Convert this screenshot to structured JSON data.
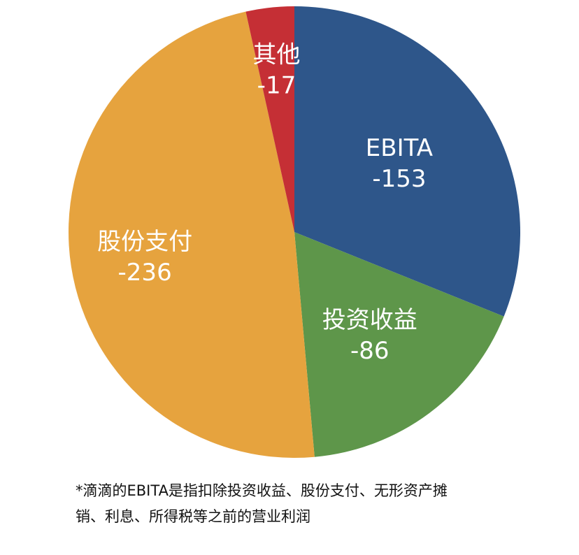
{
  "chart_data": {
    "type": "pie",
    "unit": "",
    "slices": [
      {
        "label": "EBITA",
        "value": -153,
        "value_label": "-153",
        "color": "#2e568a"
      },
      {
        "label": "投资收益",
        "value": -86,
        "value_label": "-86",
        "color": "#5e964a"
      },
      {
        "label": "股份支付",
        "value": -236,
        "value_label": "-236",
        "color": "#e6a33e"
      },
      {
        "label": "其他",
        "value": -17,
        "value_label": "-17",
        "color": "#c52f35"
      }
    ],
    "start_position": "top",
    "direction": "clockwise",
    "legend": "none"
  },
  "footnote": {
    "line1": "*滴滴的EBITA是指扣除投资收益、股份支付、无形资产摊",
    "line2": "销、利息、所得税等之前的营业利润"
  }
}
